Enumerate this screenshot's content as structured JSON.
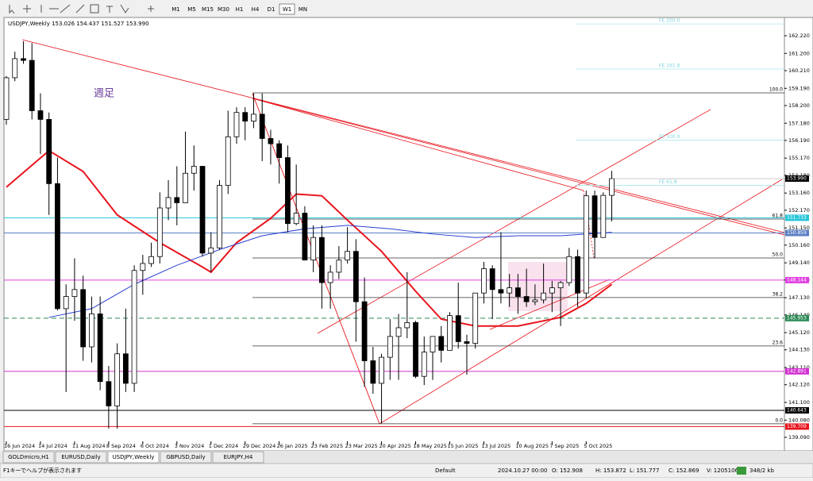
{
  "toolbar": {
    "timeframes": [
      "M1",
      "M5",
      "M15",
      "M30",
      "H1",
      "H4",
      "D1",
      "W1",
      "MN"
    ],
    "active": 7
  },
  "chart": {
    "header": "USDJPY,Weekly  153.026 154.437 151.527 153.990",
    "note": "週足",
    "ylim": [
      138.86,
      163.18
    ],
    "yticks": [
      {
        "value": 162.22,
        "label": "162.220"
      },
      {
        "value": 161.2,
        "label": "161.200"
      },
      {
        "value": 160.21,
        "label": "160.210"
      },
      {
        "value": 159.19,
        "label": "159.190"
      },
      {
        "value": 158.2,
        "label": "158.200"
      },
      {
        "value": 157.18,
        "label": "157.180"
      },
      {
        "value": 156.19,
        "label": "156.190"
      },
      {
        "value": 155.17,
        "label": "155.170"
      },
      {
        "value": 154.18,
        "label": "154.180"
      },
      {
        "value": 153.16,
        "label": "153.160"
      },
      {
        "value": 152.17,
        "label": "152.170"
      },
      {
        "value": 151.15,
        "label": "151.150"
      },
      {
        "value": 150.16,
        "label": "150.160"
      },
      {
        "value": 149.14,
        "label": "149.140"
      },
      {
        "value": 148.15,
        "label": "148.150"
      },
      {
        "value": 147.13,
        "label": "147.130"
      },
      {
        "value": 146.14,
        "label": "146.140"
      },
      {
        "value": 145.12,
        "label": "145.120"
      },
      {
        "value": 144.13,
        "label": "144.130"
      },
      {
        "value": 143.11,
        "label": "143.110"
      },
      {
        "value": 142.12,
        "label": "142.120"
      },
      {
        "value": 141.1,
        "label": "141.100"
      },
      {
        "value": 140.08,
        "label": "140.080"
      },
      {
        "value": 139.09,
        "label": "139.090"
      }
    ],
    "x_labels": [
      "16 Jun 2024",
      "14 Jul 2024",
      "11 Aug 2024",
      "8 Sep 2024",
      "6 Oct 2024",
      "3 Nov 2024",
      "1 Dec 2024",
      "29 Dec 2024",
      "26 Jan 2025",
      "23 Feb 2025",
      "23 Mar 2025",
      "20 Apr 2025",
      "18 May 2025",
      "15 Jun 2025",
      "13 Jul 2025",
      "10 Aug 2025",
      "7 Sep 2025",
      "5 Oct 2025"
    ],
    "candles": {
      "open": [
        157.4,
        159.8,
        160.9,
        160.8,
        157.9,
        157.4,
        153.7,
        146.5,
        147.2,
        147.6,
        144.3,
        146.2,
        142.3,
        140.9,
        143.9,
        142.2,
        148.7,
        149.1,
        149.5,
        152.3,
        152.9,
        152.6,
        154.3,
        154.7,
        149.7,
        150.0,
        153.6,
        156.4,
        157.8,
        157.3,
        157.7,
        156.3,
        156.0,
        155.2,
        151.4,
        152.0,
        149.3,
        150.6,
        148.0,
        148.6,
        149.3,
        149.8,
        146.9,
        143.5,
        142.2,
        143.7,
        144.9,
        145.4,
        145.7,
        142.6,
        144.0,
        144.9,
        144.1,
        146.1,
        144.6,
        144.5,
        147.4,
        148.8,
        147.6,
        147.4,
        147.7,
        147.2,
        146.9,
        147.0,
        147.4,
        147.7,
        148.0,
        149.5,
        147.4,
        153.0,
        150.6,
        153.026
      ],
      "high": [
        159.9,
        161.3,
        161.9,
        161.8,
        158.9,
        157.8,
        155.2,
        147.9,
        149.4,
        148.4,
        147.2,
        147.2,
        143.2,
        144.5,
        146.5,
        149.0,
        149.6,
        150.3,
        153.2,
        153.9,
        154.7,
        156.7,
        155.9,
        154.7,
        150.9,
        153.9,
        157.9,
        158.1,
        158.1,
        158.9,
        158.9,
        156.8,
        156.2,
        155.9,
        154.8,
        152.4,
        151.3,
        151.3,
        149.0,
        150.1,
        151.2,
        150.5,
        148.3,
        144.3,
        143.9,
        145.9,
        146.2,
        148.6,
        145.8,
        144.9,
        144.9,
        145.5,
        146.3,
        148.0,
        145.0,
        147.4,
        149.2,
        149.0,
        150.9,
        148.5,
        148.5,
        148.8,
        147.9,
        149.1,
        148.1,
        148.1,
        150.0,
        149.9,
        153.3,
        153.3,
        153.2,
        154.437
      ],
      "low": [
        157.1,
        159.6,
        160.6,
        157.4,
        155.4,
        151.9,
        146.4,
        141.7,
        145.8,
        143.5,
        143.4,
        141.8,
        139.6,
        139.6,
        141.7,
        141.7,
        147.3,
        148.9,
        149.1,
        151.6,
        151.3,
        152.6,
        153.3,
        149.5,
        148.6,
        149.9,
        153.1,
        156.0,
        156.2,
        156.9,
        155.0,
        154.8,
        153.7,
        150.9,
        151.3,
        149.3,
        148.6,
        146.5,
        146.5,
        148.2,
        149.1,
        144.6,
        142.0,
        141.6,
        139.9,
        142.4,
        142.4,
        144.8,
        142.5,
        142.1,
        142.4,
        143.4,
        144.1,
        144.2,
        142.7,
        144.2,
        146.8,
        145.9,
        146.8,
        146.6,
        146.2,
        146.6,
        146.7,
        146.8,
        146.3,
        145.5,
        147.8,
        146.6,
        147.1,
        149.4,
        150.6,
        151.527
      ],
      "close": [
        159.8,
        160.9,
        160.8,
        157.9,
        157.4,
        153.7,
        146.5,
        147.2,
        147.6,
        144.3,
        146.2,
        142.3,
        140.9,
        143.9,
        142.2,
        148.7,
        149.1,
        149.5,
        152.3,
        152.9,
        152.6,
        154.3,
        154.7,
        149.7,
        150.0,
        153.6,
        156.4,
        157.8,
        157.3,
        157.7,
        156.3,
        156.0,
        155.2,
        151.4,
        152.0,
        149.3,
        150.6,
        148.0,
        148.6,
        149.3,
        149.8,
        146.9,
        143.5,
        142.2,
        143.7,
        144.9,
        145.4,
        145.7,
        142.6,
        144.0,
        144.9,
        144.1,
        146.1,
        144.6,
        144.5,
        147.4,
        148.8,
        147.6,
        147.4,
        147.7,
        147.2,
        146.9,
        147.0,
        147.4,
        147.7,
        148.0,
        149.5,
        147.4,
        153.0,
        150.6,
        153.026,
        153.99
      ]
    },
    "last_price": {
      "value": 153.99,
      "label": "153.990"
    },
    "ma": [
      {
        "color": "#e8141c",
        "width": 2,
        "index": [
          0,
          5,
          9,
          13,
          18,
          23,
          24,
          27,
          31,
          34,
          37,
          40,
          44,
          48,
          51,
          55,
          60,
          65,
          68,
          71
        ],
        "values": [
          153.5,
          155.6,
          154.4,
          151.9,
          150.3,
          148.9,
          148.6,
          150.3,
          151.7,
          153.1,
          153.0,
          151.6,
          149.8,
          147.5,
          145.9,
          145.5,
          145.5,
          146.0,
          146.8,
          147.9
        ]
      },
      {
        "color": "#2a3fd1",
        "width": 1,
        "index": [
          5,
          10,
          15,
          20,
          25,
          30,
          35,
          40,
          45,
          50,
          55,
          60,
          65,
          71
        ],
        "values": [
          146.0,
          146.5,
          147.9,
          149.0,
          149.9,
          150.7,
          151.1,
          151.3,
          151.1,
          150.8,
          150.6,
          150.7,
          150.7,
          150.9
        ]
      }
    ],
    "fibo": [
      {
        "value": 158.93,
        "label": "100.0"
      },
      {
        "value": 151.66,
        "label": "61.8"
      },
      {
        "value": 149.42,
        "label": "50.0"
      },
      {
        "value": 147.14,
        "label": "38.2"
      },
      {
        "value": 144.35,
        "label": "23.6"
      },
      {
        "value": 139.87,
        "label": "0.0"
      }
    ],
    "expansion": [
      {
        "value": 162.9,
        "label": "FE 200.0"
      },
      {
        "value": 160.3,
        "label": "FE 161.8"
      },
      {
        "value": 156.2,
        "label": "FE 100.0"
      },
      {
        "value": 153.6,
        "label": "FE 61.8"
      }
    ],
    "hlines": [
      {
        "value": 151.733,
        "color": "#26c6da"
      },
      {
        "value": 150.859,
        "color": "#5b7fc4"
      },
      {
        "value": 148.144,
        "color": "#e040e0"
      },
      {
        "value": 145.953,
        "color": "#2e8b57",
        "dashed": true
      },
      {
        "value": 142.891,
        "color": "#d030d0"
      },
      {
        "value": 140.643,
        "color": "#000000"
      },
      {
        "value": 139.709,
        "color": "#e8141c"
      }
    ]
  },
  "tabs": {
    "items": [
      "GOLDmicro,H1",
      "EURUSD,Daily",
      "USDJPY,Weekly",
      "GBPUSD,Daily",
      "EURJPY,H4"
    ],
    "active": 2
  },
  "status": {
    "help": "F1キーでヘルプが表示されます",
    "profile": "Default",
    "time": "2024.10.27 00:00",
    "open": "O: 152.908",
    "high": "H: 153.872",
    "low": "L: 151.777",
    "close": "C: 152.869",
    "volume": "V: 1205106",
    "traffic": "348/2 kb"
  }
}
